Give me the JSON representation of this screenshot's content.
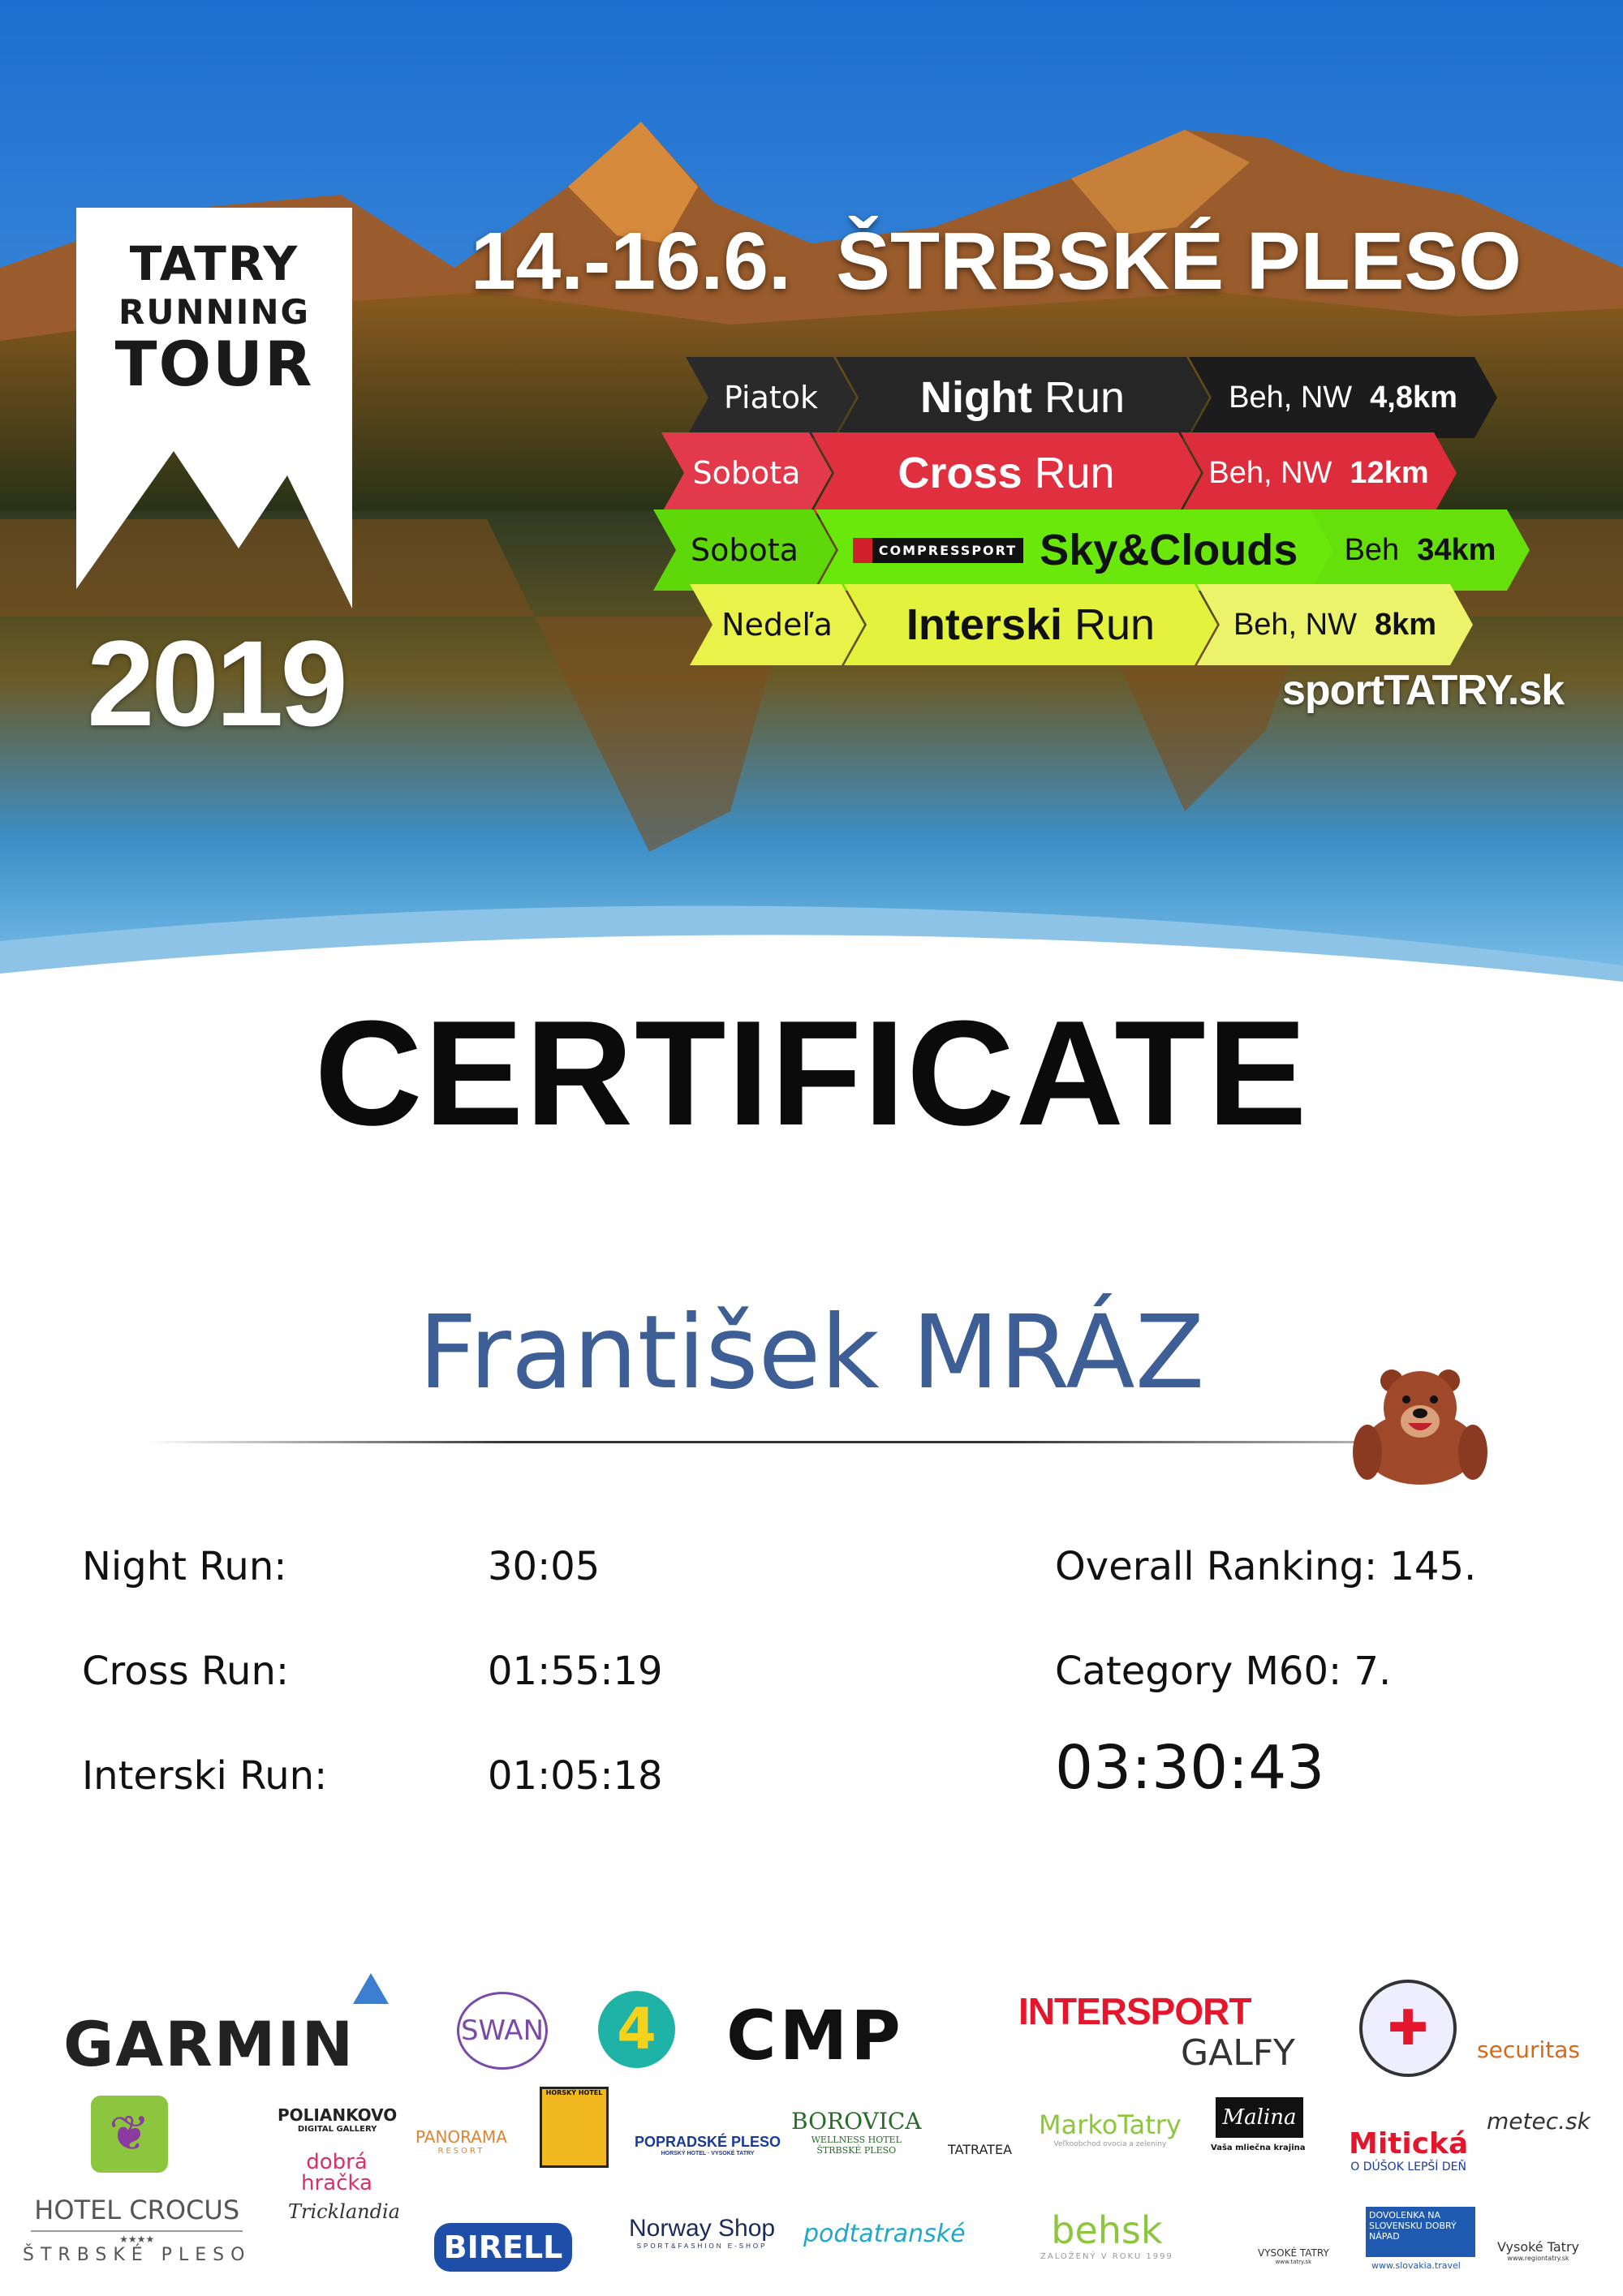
{
  "header": {
    "logo_lines": [
      "TATRY",
      "RUNNING",
      "TOUR"
    ],
    "year": "2019",
    "date_location": "14.-16.6.  ŠTRBSKÉ PLESO",
    "website": "sportTATRY.sk"
  },
  "races": [
    {
      "day": "Piatok",
      "name_bold": "Night",
      "name_light": "Run",
      "type": "Beh, NW",
      "distance": "4,8km",
      "color": "#1e1e1e",
      "text_color": "#ffffff"
    },
    {
      "day": "Sobota",
      "name_bold": "Cross",
      "name_light": "Run",
      "type": "Beh, NW",
      "distance": "12km",
      "color": "#e0303f",
      "text_color": "#ffffff"
    },
    {
      "day": "Sobota",
      "sponsor": "COMPRESSPORT",
      "name_bold": "Sky&Clouds",
      "name_light": "",
      "type": "Beh",
      "distance": "34km",
      "color": "#66e60a",
      "text_color": "#111111"
    },
    {
      "day": "Nedeľa",
      "name_bold": "Interski",
      "name_light": "Run",
      "type": "Beh, NW",
      "distance": "8km",
      "color": "#e3f23c",
      "text_color": "#111111"
    }
  ],
  "certificate": {
    "title": "CERTIFICATE",
    "participant": "František MRÁZ",
    "results": [
      {
        "label": "Night Run:",
        "time": "30:05"
      },
      {
        "label": "Cross Run:",
        "time": "01:55:19"
      },
      {
        "label": "Interski Run:",
        "time": "01:05:18"
      }
    ],
    "overall_ranking": "Overall Ranking: 145.",
    "category_ranking": "Category M60: 7.",
    "total_time": "03:30:43",
    "name_color": "#3d5f96"
  },
  "sponsors": {
    "garmin": "GARMIN",
    "swan": "SWAN",
    "ka": "4",
    "cmp": "CMP",
    "intersport": "INTERSPORT",
    "galfy": "GALFY",
    "securitas": "securitas",
    "poliankovo": "POLIANKOVO",
    "poliankovo_sub": "DIGITAL GALLERY",
    "dobra_hracka": "dobrá hračka",
    "panorama": "PANORAMA",
    "panorama_sub": "RESORT",
    "horsky_hotel": "HORSKÝ HOTEL",
    "popradske": "POPRADSKÉ PLESO",
    "popradske_sub": "HORSKÝ HOTEL · VYSOKÉ TATRY",
    "borovica": "BOROVICA",
    "borovica_sub": "WELLNESS HOTEL ŠTRBSKÉ PLESO",
    "tatratea": "TATRATEA",
    "marko": "MarkoTatry",
    "marko_sub": "Veľkoobchod ovocia a zeleniny",
    "malina": "Malina",
    "malina_sub": "Vaša mliečna krajina",
    "miticka": "Mitická",
    "miticka_sub": "O DÚŠOK LEPŠÍ DEŇ",
    "metec": "metec.sk",
    "crocus": "HOTEL CROCUS",
    "crocus_stars": "★★★★",
    "crocus_sub": "ŠTRBSKÉ PLESO",
    "tricklandia": "Tricklandia",
    "birell": "BIRELL",
    "norway": "Norway Shop",
    "norway_sub": "SPORT&FASHION E-SHOP",
    "podtatranske": "podtatranské",
    "behsk": "behsk",
    "behsk_sub": "ZALOŽENÝ V ROKU 1999",
    "vt": "VYSOKÉ TATRY",
    "vt_sub": "www.tatry.sk",
    "slovakia": "DOVOLENKA NA SLOVENSKU DOBRÝ NÁPAD",
    "slovakia_sub": "www.slovakia.travel",
    "region": "Vysoké Tatry",
    "region_sub": "www.regiontatry.sk"
  }
}
